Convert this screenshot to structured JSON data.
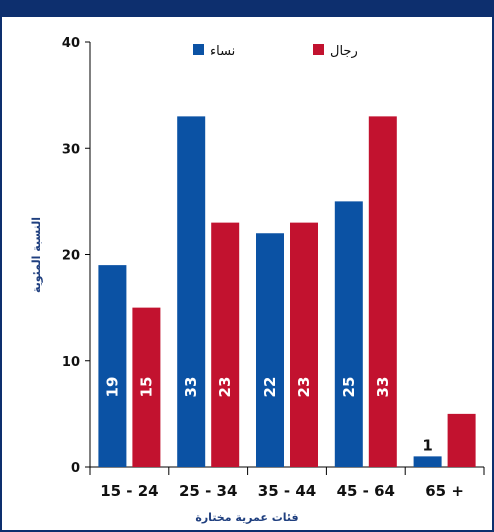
{
  "chart_data": {
    "type": "bar",
    "categories": [
      "15 - 24",
      "25 - 34",
      "35 - 44",
      "45 - 64",
      "65 +"
    ],
    "series": [
      {
        "name": "نساء",
        "color": "#0b52a4",
        "values": [
          19,
          33,
          22,
          25,
          1
        ]
      },
      {
        "name": "رجال",
        "color": "#c2122f",
        "values": [
          15,
          23,
          23,
          33,
          5
        ]
      }
    ],
    "title": "",
    "xlabel": "فئات عمرية مختارة",
    "ylabel": "النسبة المئوية",
    "ylim": [
      0,
      40
    ],
    "yticks": [
      0,
      10,
      20,
      30,
      40
    ],
    "grid": false,
    "legend_position": "top"
  }
}
